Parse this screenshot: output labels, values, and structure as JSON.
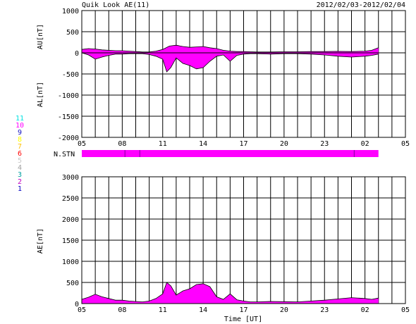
{
  "header": {
    "title": "Quik Look AE(11)",
    "date_range": "2012/02/03-2012/02/04"
  },
  "station_legend": {
    "items": [
      {
        "num": "11",
        "color": "#00e0e0"
      },
      {
        "num": "10",
        "color": "#ff00ff"
      },
      {
        "num": "9",
        "color": "#1010c0"
      },
      {
        "num": "8",
        "color": "#ffff00"
      },
      {
        "num": "7",
        "color": "#ffc000"
      },
      {
        "num": "6",
        "color": "#ff0000"
      },
      {
        "num": "5",
        "color": "#c8c8c8"
      },
      {
        "num": "4",
        "color": "#a0a0a0"
      },
      {
        "num": "3",
        "color": "#00a0a0"
      },
      {
        "num": "2",
        "color": "#c000c0"
      },
      {
        "num": "1",
        "color": "#0000c0"
      }
    ]
  },
  "nstn_label": "N.STN",
  "colors": {
    "fill": "#ff00ff",
    "line": "#000000",
    "station_bar": "#ff00ff"
  },
  "chart_data": [
    {
      "type": "area",
      "title": "",
      "ylabel_top": "AU[nT]",
      "ylabel_bottom": "AL[nT]",
      "xlabel": "",
      "ylim": [
        -2000,
        1000
      ],
      "yticks": [
        1000,
        500,
        0,
        -500,
        -1000,
        -1500,
        -2000
      ],
      "xlim": [
        5,
        29
      ],
      "xticks": [
        "05",
        "08",
        "11",
        "14",
        "17",
        "20",
        "23",
        "02",
        "05"
      ],
      "grid": true,
      "series": [
        {
          "name": "AU",
          "x": [
            5.0,
            5.5,
            6.0,
            6.5,
            7.0,
            7.5,
            8.0,
            8.5,
            9.0,
            9.5,
            10.0,
            10.5,
            11.0,
            11.5,
            12.0,
            12.5,
            13.0,
            13.5,
            14.0,
            14.5,
            15.0,
            15.5,
            16.0,
            16.5,
            17.0,
            17.5,
            18.0,
            19.0,
            20.0,
            21.0,
            22.0,
            23.0,
            24.0,
            25.0,
            26.0,
            26.5,
            27.0
          ],
          "values": [
            80,
            100,
            90,
            70,
            60,
            50,
            50,
            40,
            30,
            20,
            20,
            40,
            80,
            160,
            180,
            150,
            130,
            140,
            150,
            120,
            100,
            60,
            40,
            30,
            30,
            25,
            20,
            20,
            25,
            25,
            30,
            30,
            35,
            30,
            40,
            60,
            120
          ]
        },
        {
          "name": "AL",
          "x": [
            5.0,
            5.5,
            6.0,
            6.5,
            7.0,
            7.5,
            8.0,
            8.5,
            9.0,
            9.5,
            10.0,
            10.5,
            11.0,
            11.3,
            11.6,
            12.0,
            12.5,
            13.0,
            13.5,
            14.0,
            14.5,
            15.0,
            15.5,
            16.0,
            16.5,
            17.0,
            17.5,
            18.0,
            19.0,
            20.0,
            21.0,
            22.0,
            23.0,
            24.0,
            25.0,
            26.0,
            26.5,
            27.0
          ],
          "values": [
            0,
            -50,
            -150,
            -100,
            -60,
            -30,
            -30,
            -20,
            -20,
            -20,
            -40,
            -80,
            -150,
            -450,
            -350,
            -120,
            -250,
            -300,
            -380,
            -350,
            -200,
            -80,
            -50,
            -200,
            -60,
            -30,
            -20,
            -20,
            -30,
            -20,
            -20,
            -30,
            -50,
            -80,
            -100,
            -80,
            -60,
            -30
          ]
        }
      ]
    },
    {
      "type": "area",
      "title": "",
      "ylabel": "AE[nT]",
      "xlabel": "Time [UT]",
      "ylim": [
        0,
        3000
      ],
      "yticks": [
        3000,
        2500,
        2000,
        1500,
        1000,
        500,
        0
      ],
      "xlim": [
        5,
        29
      ],
      "xticks": [
        "05",
        "08",
        "11",
        "14",
        "17",
        "20",
        "23",
        "02",
        "05"
      ],
      "grid": true,
      "series": [
        {
          "name": "AE",
          "x": [
            5.0,
            5.5,
            6.0,
            6.5,
            7.0,
            7.5,
            8.0,
            8.5,
            9.0,
            9.5,
            10.0,
            10.5,
            11.0,
            11.3,
            11.6,
            12.0,
            12.5,
            13.0,
            13.5,
            14.0,
            14.5,
            15.0,
            15.5,
            16.0,
            16.5,
            17.0,
            17.5,
            18.0,
            19.0,
            20.0,
            21.0,
            22.0,
            23.0,
            24.0,
            25.0,
            26.0,
            26.5,
            27.0
          ],
          "values": [
            100,
            150,
            220,
            160,
            120,
            80,
            80,
            60,
            50,
            40,
            60,
            120,
            230,
            500,
            420,
            200,
            300,
            350,
            450,
            470,
            400,
            160,
            100,
            230,
            90,
            60,
            40,
            40,
            50,
            45,
            40,
            60,
            80,
            110,
            140,
            120,
            100,
            130
          ]
        }
      ]
    }
  ]
}
